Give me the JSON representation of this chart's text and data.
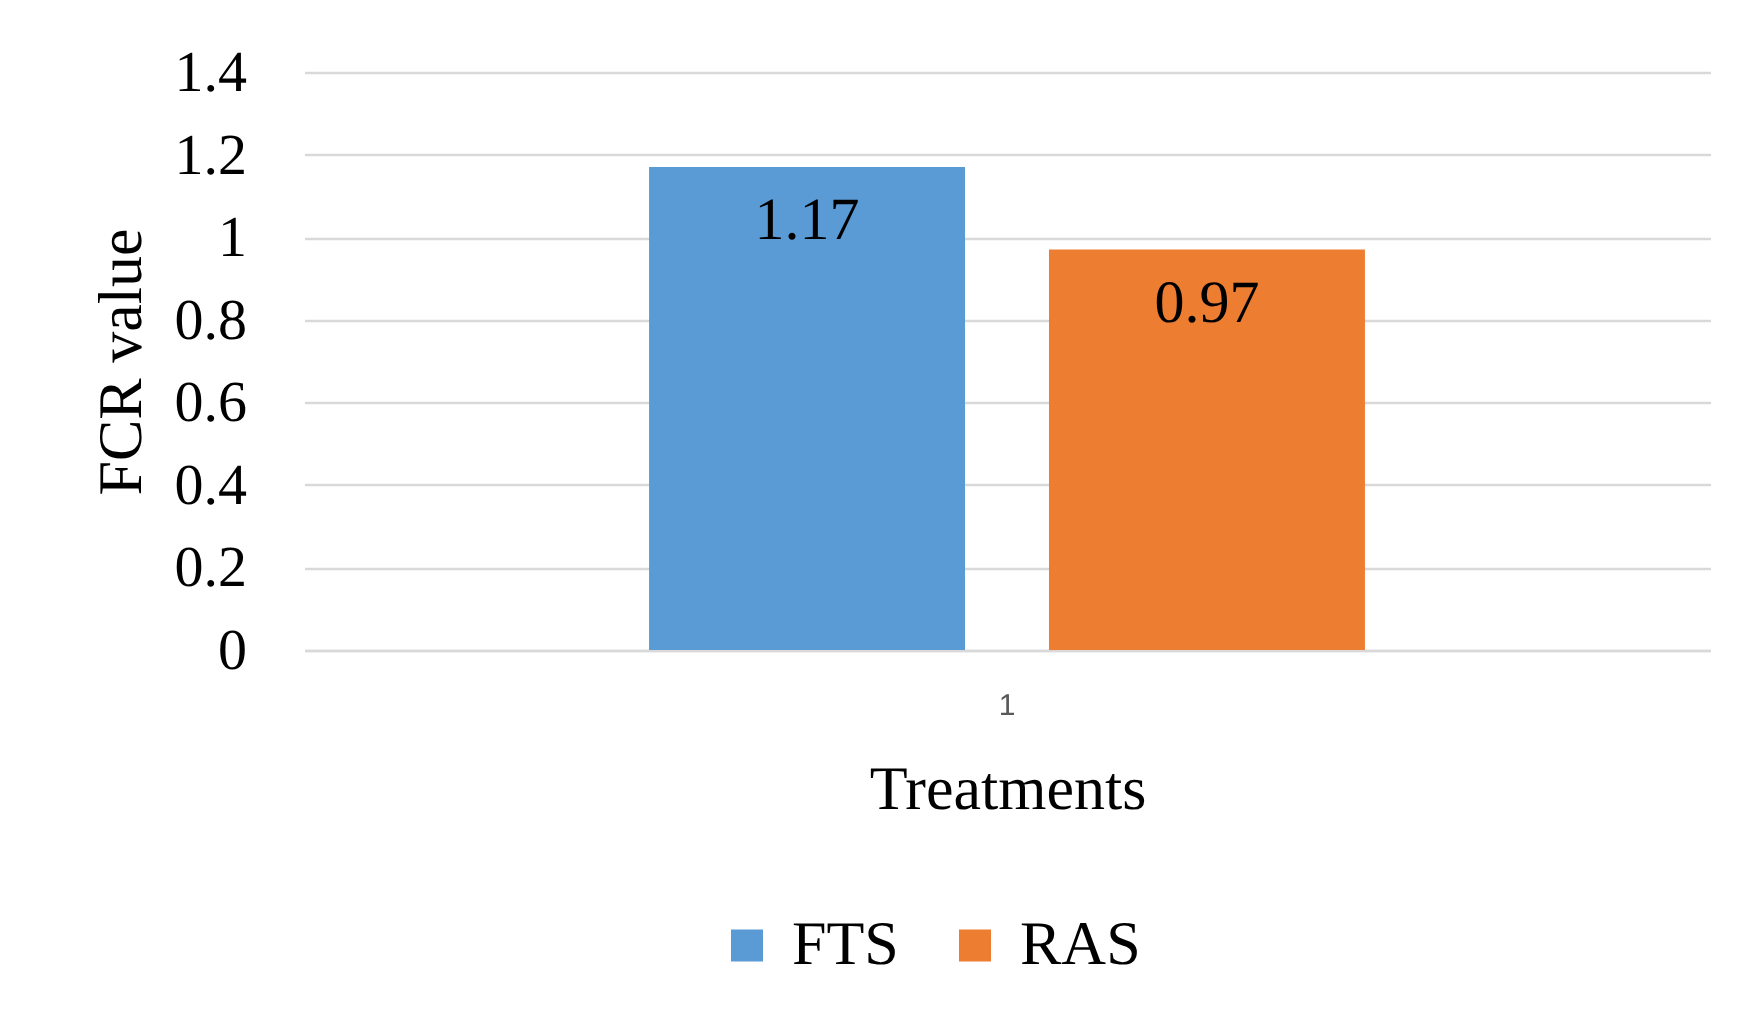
{
  "chart_data": {
    "type": "bar",
    "xlabel": "Treatments",
    "ylabel": "FCR value",
    "categories": [
      "1"
    ],
    "series": [
      {
        "name": "FTS",
        "color": "#5b9bd5",
        "values": [
          1.17
        ]
      },
      {
        "name": "RAS",
        "color": "#ed7d31",
        "values": [
          0.97
        ]
      }
    ],
    "ylim": [
      0,
      1.4
    ],
    "yticks": [
      0,
      0.2,
      0.4,
      0.6,
      0.8,
      1,
      1.2,
      1.4
    ],
    "grid": "y",
    "legend": "bottom",
    "data_labels": true
  }
}
